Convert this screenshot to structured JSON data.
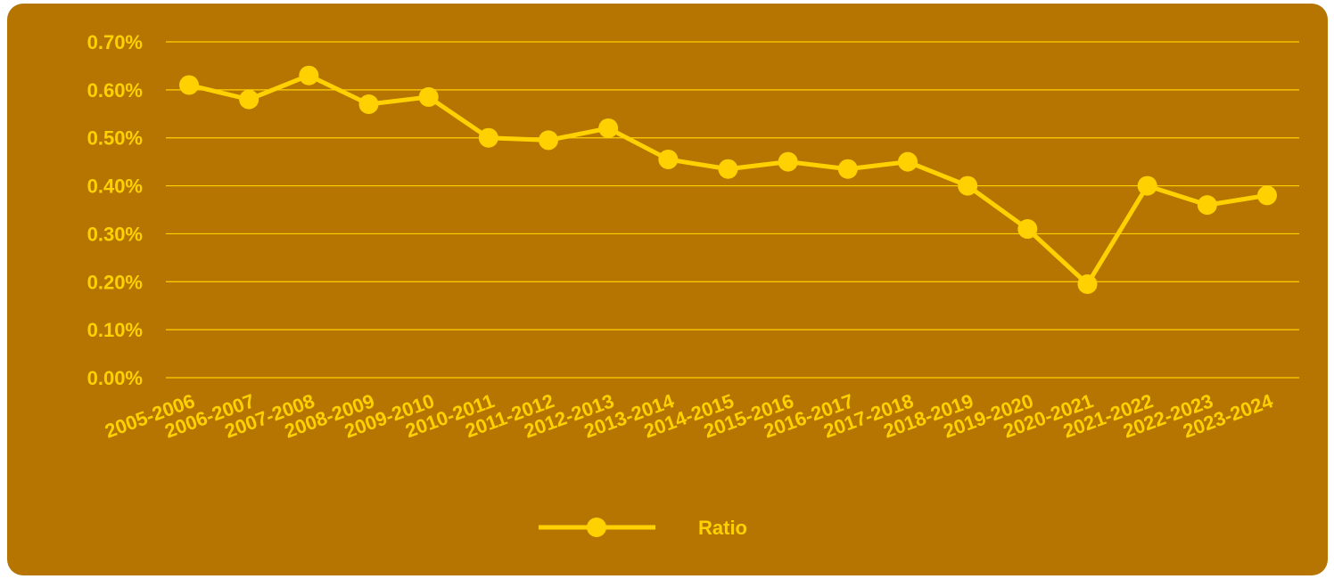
{
  "colors": {
    "background": "#b57500",
    "accent": "#ffd100",
    "gridline": "#ffd100"
  },
  "chart_data": {
    "type": "line",
    "title": "",
    "xlabel": "",
    "ylabel": "",
    "ylim": [
      0,
      0.7
    ],
    "y_tick_format": "percent",
    "y_ticks": [
      "0.00%",
      "0.10%",
      "0.20%",
      "0.30%",
      "0.40%",
      "0.50%",
      "0.60%",
      "0.70%"
    ],
    "grid": true,
    "legend_position": "bottom",
    "categories": [
      "2005-2006",
      "2006-2007",
      "2007-2008",
      "2008-2009",
      "2009-2010",
      "2010-2011",
      "2011-2012",
      "2012-2013",
      "2013-2014",
      "2014-2015",
      "2015-2016",
      "2016-2017",
      "2017-2018",
      "2018-2019",
      "2019-2020",
      "2020-2021",
      "2021-2022",
      "2022-2023",
      "2023-2024"
    ],
    "series": [
      {
        "name": "Ratio",
        "values": [
          0.61,
          0.58,
          0.63,
          0.57,
          0.585,
          0.5,
          0.495,
          0.52,
          0.455,
          0.435,
          0.45,
          0.435,
          0.45,
          0.4,
          0.31,
          0.195,
          0.4,
          0.36,
          0.38
        ]
      }
    ]
  }
}
